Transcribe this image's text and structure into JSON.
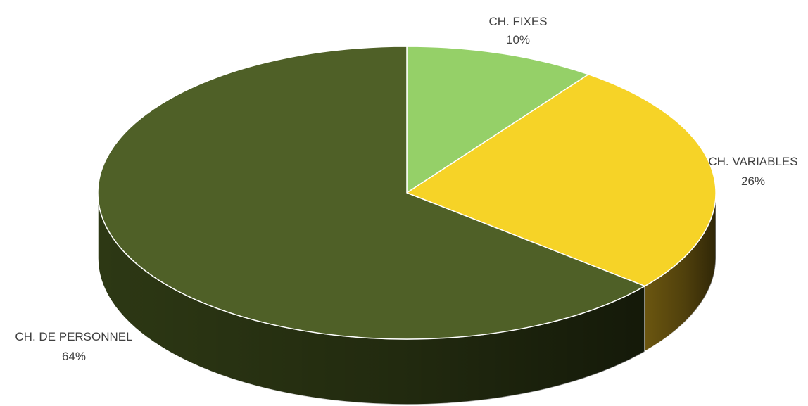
{
  "chart_data": {
    "type": "pie",
    "style": "3d",
    "title": "",
    "slices": [
      {
        "label": "CH. FIXES",
        "percent_label": "10%",
        "value": 10,
        "color": "#95d068",
        "side_color": "#6f9c4d"
      },
      {
        "label": "CH. VARIABLES",
        "percent_label": "26%",
        "value": 26,
        "color": "#f6d327",
        "side_color": "#6b5610"
      },
      {
        "label": "CH. DE PERSONNEL",
        "percent_label": "64%",
        "value": 64,
        "color": "#4f6027",
        "side_color": "#2d3814"
      }
    ],
    "legend": "none",
    "labels": "outside"
  }
}
